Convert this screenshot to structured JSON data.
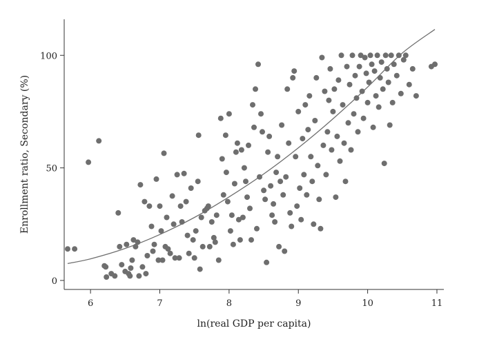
{
  "chart_data": {
    "type": "scatter",
    "title": "",
    "xlabel": "ln(real GDP per capita)",
    "ylabel": "Enrollment ratio, Secondary (%)",
    "xlim": [
      5.62,
      11.1
    ],
    "ylim": [
      -4,
      116
    ],
    "xticks": [
      "6",
      "7",
      "8",
      "9",
      "10",
      "11"
    ],
    "yticks": [
      "0",
      "50",
      "100"
    ],
    "grid": false,
    "legend": "none",
    "colors": {
      "points": "#6e6e6e",
      "fit_line": "#6e6e6e",
      "axis": "#333333"
    },
    "fit_line": {
      "x": [
        5.67,
        6.0,
        6.5,
        7.0,
        7.5,
        8.0,
        8.5,
        9.0,
        9.5,
        10.0,
        10.5,
        10.97
      ],
      "y": [
        7.5,
        9.6,
        14.2,
        20.4,
        28.0,
        37.1,
        47.3,
        58.9,
        71.8,
        85.9,
        101.0,
        111.5
      ]
    },
    "points": [
      [
        5.67,
        14
      ],
      [
        5.77,
        14
      ],
      [
        5.97,
        52.5
      ],
      [
        6.12,
        62
      ],
      [
        6.2,
        6.5
      ],
      [
        6.22,
        6
      ],
      [
        6.23,
        1.5
      ],
      [
        6.3,
        3
      ],
      [
        6.35,
        2
      ],
      [
        6.4,
        30
      ],
      [
        6.42,
        15
      ],
      [
        6.45,
        7
      ],
      [
        6.5,
        4
      ],
      [
        6.52,
        16
      ],
      [
        6.55,
        3
      ],
      [
        6.57,
        2
      ],
      [
        6.58,
        5.5
      ],
      [
        6.6,
        9
      ],
      [
        6.62,
        18
      ],
      [
        6.65,
        15
      ],
      [
        6.68,
        17
      ],
      [
        6.7,
        2
      ],
      [
        6.72,
        42.5
      ],
      [
        6.75,
        6
      ],
      [
        6.78,
        35
      ],
      [
        6.8,
        3
      ],
      [
        6.82,
        11
      ],
      [
        6.85,
        33
      ],
      [
        6.88,
        24
      ],
      [
        6.9,
        13
      ],
      [
        6.92,
        16
      ],
      [
        6.95,
        45
      ],
      [
        6.98,
        9
      ],
      [
        7.0,
        33
      ],
      [
        7.02,
        22
      ],
      [
        7.04,
        9
      ],
      [
        7.06,
        56.5
      ],
      [
        7.08,
        15
      ],
      [
        7.1,
        28
      ],
      [
        7.12,
        14
      ],
      [
        7.15,
        12
      ],
      [
        7.18,
        37.5
      ],
      [
        7.2,
        25
      ],
      [
        7.22,
        10
      ],
      [
        7.25,
        47
      ],
      [
        7.28,
        10
      ],
      [
        7.3,
        33
      ],
      [
        7.32,
        26
      ],
      [
        7.35,
        47.5
      ],
      [
        7.38,
        35
      ],
      [
        7.4,
        20
      ],
      [
        7.42,
        12
      ],
      [
        7.45,
        41
      ],
      [
        7.48,
        18
      ],
      [
        7.5,
        10
      ],
      [
        7.52,
        22
      ],
      [
        7.55,
        44
      ],
      [
        7.56,
        64.5
      ],
      [
        7.58,
        5
      ],
      [
        7.6,
        28
      ],
      [
        7.62,
        15
      ],
      [
        7.65,
        31
      ],
      [
        7.68,
        32
      ],
      [
        7.7,
        33
      ],
      [
        7.72,
        15
      ],
      [
        7.75,
        26
      ],
      [
        7.78,
        19
      ],
      [
        7.8,
        17
      ],
      [
        7.82,
        29
      ],
      [
        7.85,
        9
      ],
      [
        7.88,
        72
      ],
      [
        7.9,
        54
      ],
      [
        7.92,
        38
      ],
      [
        7.95,
        64.5
      ],
      [
        7.96,
        48
      ],
      [
        7.98,
        35
      ],
      [
        8.0,
        74
      ],
      [
        8.02,
        22
      ],
      [
        8.04,
        29
      ],
      [
        8.06,
        16
      ],
      [
        8.08,
        43
      ],
      [
        8.1,
        57
      ],
      [
        8.12,
        61
      ],
      [
        8.14,
        27
      ],
      [
        8.16,
        18
      ],
      [
        8.18,
        58
      ],
      [
        8.2,
        28
      ],
      [
        8.22,
        50
      ],
      [
        8.24,
        44
      ],
      [
        8.26,
        37
      ],
      [
        8.28,
        60
      ],
      [
        8.3,
        32
      ],
      [
        8.32,
        18
      ],
      [
        8.34,
        78
      ],
      [
        8.36,
        68
      ],
      [
        8.38,
        85
      ],
      [
        8.4,
        23
      ],
      [
        8.42,
        96
      ],
      [
        8.44,
        46
      ],
      [
        8.46,
        74
      ],
      [
        8.48,
        66
      ],
      [
        8.5,
        40
      ],
      [
        8.52,
        36
      ],
      [
        8.54,
        8
      ],
      [
        8.56,
        57
      ],
      [
        8.58,
        64
      ],
      [
        8.6,
        42
      ],
      [
        8.62,
        29
      ],
      [
        8.64,
        34
      ],
      [
        8.66,
        26
      ],
      [
        8.68,
        48
      ],
      [
        8.7,
        55
      ],
      [
        8.72,
        15
      ],
      [
        8.74,
        44
      ],
      [
        8.76,
        69
      ],
      [
        8.78,
        38
      ],
      [
        8.8,
        13
      ],
      [
        8.82,
        46
      ],
      [
        8.84,
        85
      ],
      [
        8.86,
        61
      ],
      [
        8.88,
        30
      ],
      [
        8.9,
        24
      ],
      [
        8.92,
        90
      ],
      [
        8.94,
        93
      ],
      [
        8.96,
        55
      ],
      [
        8.98,
        33
      ],
      [
        9.0,
        75
      ],
      [
        9.02,
        41
      ],
      [
        9.04,
        27
      ],
      [
        9.06,
        63
      ],
      [
        9.08,
        47
      ],
      [
        9.1,
        78
      ],
      [
        9.12,
        38
      ],
      [
        9.14,
        67
      ],
      [
        9.16,
        82
      ],
      [
        9.18,
        55
      ],
      [
        9.2,
        44
      ],
      [
        9.22,
        25
      ],
      [
        9.24,
        71
      ],
      [
        9.26,
        90
      ],
      [
        9.28,
        51
      ],
      [
        9.3,
        36
      ],
      [
        9.32,
        23
      ],
      [
        9.34,
        99
      ],
      [
        9.36,
        60
      ],
      [
        9.38,
        84
      ],
      [
        9.4,
        47
      ],
      [
        9.42,
        66
      ],
      [
        9.44,
        80
      ],
      [
        9.46,
        94
      ],
      [
        9.48,
        58
      ],
      [
        9.5,
        75
      ],
      [
        9.52,
        85
      ],
      [
        9.54,
        37
      ],
      [
        9.56,
        64
      ],
      [
        9.58,
        89
      ],
      [
        9.6,
        53
      ],
      [
        9.62,
        100
      ],
      [
        9.64,
        78
      ],
      [
        9.66,
        61
      ],
      [
        9.68,
        44
      ],
      [
        9.7,
        95
      ],
      [
        9.72,
        70
      ],
      [
        9.74,
        87
      ],
      [
        9.76,
        58
      ],
      [
        9.78,
        100
      ],
      [
        9.8,
        74
      ],
      [
        9.82,
        91
      ],
      [
        9.84,
        81
      ],
      [
        9.86,
        66
      ],
      [
        9.88,
        95
      ],
      [
        9.9,
        100
      ],
      [
        9.92,
        84
      ],
      [
        9.94,
        72
      ],
      [
        9.96,
        99
      ],
      [
        9.98,
        92
      ],
      [
        10.0,
        79
      ],
      [
        10.02,
        88
      ],
      [
        10.04,
        100
      ],
      [
        10.06,
        96
      ],
      [
        10.08,
        68
      ],
      [
        10.1,
        93
      ],
      [
        10.12,
        82
      ],
      [
        10.14,
        100
      ],
      [
        10.16,
        77
      ],
      [
        10.18,
        90
      ],
      [
        10.2,
        97
      ],
      [
        10.22,
        85
      ],
      [
        10.24,
        52
      ],
      [
        10.26,
        100
      ],
      [
        10.28,
        94
      ],
      [
        10.3,
        88
      ],
      [
        10.32,
        69
      ],
      [
        10.34,
        100
      ],
      [
        10.36,
        79
      ],
      [
        10.38,
        96
      ],
      [
        10.42,
        91
      ],
      [
        10.45,
        100
      ],
      [
        10.48,
        83
      ],
      [
        10.52,
        98
      ],
      [
        10.55,
        100
      ],
      [
        10.6,
        87
      ],
      [
        10.65,
        94
      ],
      [
        10.7,
        82
      ],
      [
        10.92,
        95
      ],
      [
        10.97,
        96
      ]
    ]
  }
}
